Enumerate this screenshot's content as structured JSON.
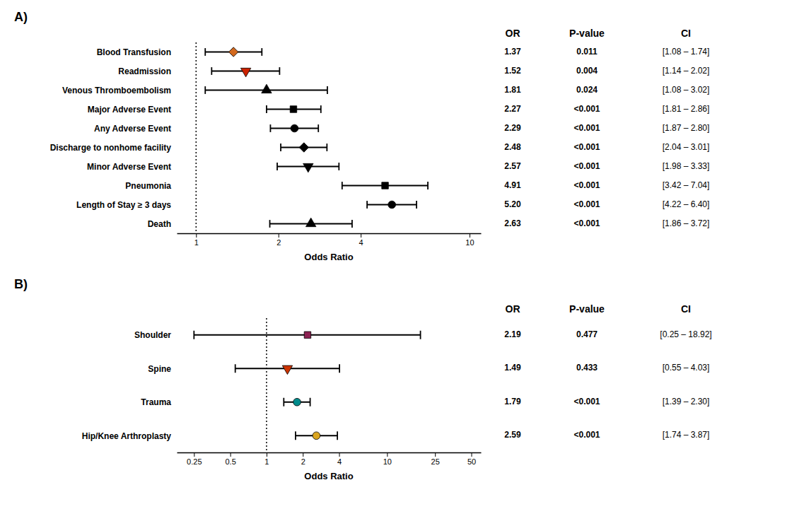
{
  "chart_data": [
    {
      "type": "forest",
      "title": "A)",
      "categories": [
        "Blood Transfusion",
        "Readmission",
        "Venous Thromboembolism",
        "Major Adverse Event",
        "Any Adverse Event",
        "Discharge to nonhome facility",
        "Minor Adverse Event",
        "Pneumonia",
        "Length of Stay ≥ 3 days",
        "Death"
      ],
      "values": [
        1.37,
        1.52,
        1.81,
        2.27,
        2.29,
        2.48,
        2.57,
        4.91,
        5.2,
        2.63
      ],
      "value_labels": [
        "1.37",
        "1.52",
        "1.81",
        "2.27",
        "2.29",
        "2.48",
        "2.57",
        "4.91",
        "5.20",
        "2.63"
      ],
      "ci_low": [
        1.08,
        1.14,
        1.08,
        1.81,
        1.87,
        2.04,
        1.98,
        3.42,
        4.22,
        1.86
      ],
      "ci_high": [
        1.74,
        2.02,
        3.02,
        2.86,
        2.8,
        3.01,
        3.33,
        7.04,
        6.4,
        3.72
      ],
      "ci_labels": [
        "[1.08 – 1.74]",
        "[1.14 – 2.02]",
        "[1.08 – 3.02]",
        "[1.81 – 2.86]",
        "[1.87 – 2.80]",
        "[2.04 – 3.01]",
        "[1.98 – 3.33]",
        "[3.42 – 7.04]",
        "[4.22 – 6.40]",
        "[1.86 – 3.72]"
      ],
      "p_values": [
        "0.011",
        "0.004",
        "0.024",
        "<0.001",
        "<0.001",
        "<0.001",
        "<0.001",
        "<0.001",
        "<0.001",
        "<0.001"
      ],
      "columns": [
        "OR",
        "P-value",
        "CI"
      ],
      "markers": [
        "diamond",
        "triangle-down",
        "triangle-up",
        "square",
        "circle",
        "diamond",
        "triangle-down",
        "square",
        "circle",
        "triangle-up"
      ],
      "colors": [
        "#D2691E",
        "#CC2200",
        "#000000",
        "#000000",
        "#000000",
        "#000000",
        "#000000",
        "#000000",
        "#000000",
        "#000000"
      ],
      "x_label": "Odds Ratio",
      "log": "x",
      "xlim": [
        0.85,
        11
      ],
      "xticks": [
        1,
        2,
        4,
        10
      ],
      "xline": 1
    },
    {
      "type": "forest",
      "title": "B)",
      "categories": [
        "Shoulder",
        "Spine",
        "Trauma",
        "Hip/Knee Arthroplasty"
      ],
      "values": [
        2.19,
        1.49,
        1.79,
        2.59
      ],
      "value_labels": [
        "2.19",
        "1.49",
        "1.79",
        "2.59"
      ],
      "ci_low": [
        0.25,
        0.55,
        1.39,
        1.74
      ],
      "ci_high": [
        18.92,
        4.03,
        2.3,
        3.87
      ],
      "ci_labels": [
        "[0.25 – 18.92]",
        "[0.55 – 4.03]",
        "[1.39 – 2.30]",
        "[1.74 – 3.87]"
      ],
      "p_values": [
        "0.477",
        "0.433",
        "<0.001",
        "<0.001"
      ],
      "columns": [
        "OR",
        "P-value",
        "CI"
      ],
      "markers": [
        "square",
        "triangle-down",
        "circle",
        "circle"
      ],
      "colors": [
        "#8B2252",
        "#CC3300",
        "#008B8B",
        "#DAA520"
      ],
      "x_label": "Odds Ratio",
      "log": "x",
      "xlim": [
        0.18,
        60
      ],
      "xticks": [
        0.25,
        0.5,
        1,
        2,
        4,
        10,
        25,
        50
      ],
      "xline": 1
    }
  ]
}
